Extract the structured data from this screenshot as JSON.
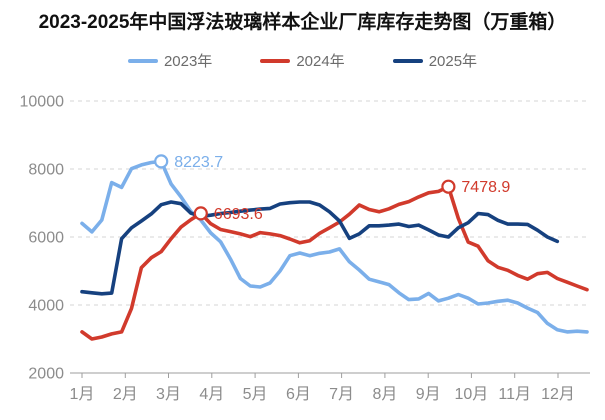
{
  "chart_data": {
    "type": "line",
    "title": "2023-2025年中国浮法玻璃样本企业厂库库存走势图（万重箱）",
    "x_axis": {
      "labels": [
        "1月",
        "2月",
        "3月",
        "4月",
        "5月",
        "6月",
        "7月",
        "8月",
        "9月",
        "10月",
        "11月",
        "12月"
      ]
    },
    "y_axis": {
      "min": 2000,
      "max": 10000,
      "ticks": [
        10000,
        8000,
        6000,
        4000,
        2000
      ]
    },
    "grid": "horizontal-dashed",
    "legend_position": "top",
    "x_unit": "week",
    "series": [
      {
        "name": "2023年",
        "color": "#7BAFEA",
        "values": [
          6400,
          6150,
          6500,
          7600,
          7460,
          8010,
          8120,
          8190,
          8223.7,
          7560,
          7180,
          6750,
          6500,
          6120,
          5860,
          5350,
          4780,
          4560,
          4530,
          4650,
          5000,
          5450,
          5530,
          5450,
          5520,
          5560,
          5650,
          5270,
          5030,
          4760,
          4680,
          4600,
          4360,
          4160,
          4180,
          4340,
          4120,
          4200,
          4310,
          4200,
          4030,
          4060,
          4110,
          4140,
          4060,
          3910,
          3780,
          3460,
          3270,
          3210,
          3230,
          3210
        ],
        "annotations": [
          {
            "week": 8,
            "value": 8223.7,
            "label": "8223.7"
          }
        ]
      },
      {
        "name": "2024年",
        "color": "#D13A2C",
        "values": [
          3210,
          3000,
          3060,
          3150,
          3210,
          3900,
          5100,
          5390,
          5570,
          5950,
          6290,
          6510,
          6693.6,
          6390,
          6220,
          6160,
          6090,
          6010,
          6130,
          6090,
          6040,
          5940,
          5830,
          5890,
          6110,
          6270,
          6440,
          6670,
          6940,
          6810,
          6740,
          6830,
          6960,
          7040,
          7180,
          7300,
          7340,
          7478.9,
          6550,
          5850,
          5730,
          5300,
          5110,
          5020,
          4870,
          4760,
          4920,
          4960,
          4780,
          4670,
          4560,
          4450
        ],
        "annotations": [
          {
            "week": 12,
            "value": 6693.6,
            "label": "6693.6"
          },
          {
            "week": 37,
            "value": 7478.9,
            "label": "7478.9"
          }
        ]
      },
      {
        "name": "2025年",
        "color": "#16417F",
        "values": [
          4390,
          4360,
          4330,
          4350,
          5950,
          6270,
          6470,
          6680,
          6950,
          7030,
          6980,
          6700,
          6610,
          6640,
          6690,
          6720,
          6760,
          6790,
          6820,
          6840,
          6970,
          7010,
          7030,
          7030,
          6940,
          6740,
          6470,
          5960,
          6090,
          6330,
          6330,
          6350,
          6380,
          6310,
          6350,
          6210,
          6060,
          6000,
          6270,
          6420,
          6690,
          6660,
          6490,
          6380,
          6380,
          6370,
          6200,
          6000,
          5870
        ],
        "annotations": []
      }
    ]
  }
}
